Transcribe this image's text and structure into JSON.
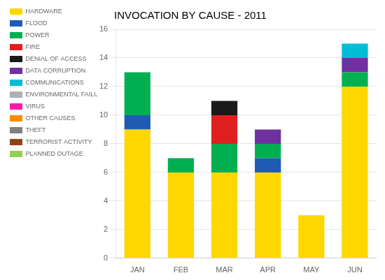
{
  "chart_data": {
    "type": "bar",
    "title": "INVOCATION BY CAUSE - 2011",
    "categories": [
      "JAN",
      "FEB",
      "MAR",
      "APR",
      "MAY",
      "JUN"
    ],
    "stacked": true,
    "series": [
      {
        "name": "HARDWARE",
        "color": "#ffd700",
        "values": [
          9,
          6,
          6,
          6,
          3,
          12
        ]
      },
      {
        "name": "FLOOD",
        "color": "#1f5bb5",
        "values": [
          1,
          0,
          0,
          1,
          0,
          0
        ]
      },
      {
        "name": "POWER",
        "color": "#00b050",
        "values": [
          3,
          1,
          2,
          1,
          0,
          1
        ]
      },
      {
        "name": "FIRE",
        "color": "#e02020",
        "values": [
          0,
          0,
          2,
          0,
          0,
          0
        ]
      },
      {
        "name": "DENIAL OF ACCESS",
        "color": "#1a1a1a",
        "values": [
          0,
          0,
          1,
          0,
          0,
          0
        ]
      },
      {
        "name": "DATA CORRUPTION",
        "color": "#7030a0",
        "values": [
          0,
          0,
          0,
          1,
          0,
          1
        ]
      },
      {
        "name": "COMMUNICATIONS",
        "color": "#00bcd4",
        "values": [
          0,
          0,
          0,
          0,
          0,
          1
        ]
      },
      {
        "name": "ENVIRONMENTAL FAILURE",
        "color": "#b0b0b0",
        "values": [
          0,
          0,
          0,
          0,
          0,
          0
        ]
      },
      {
        "name": "VIRUS",
        "color": "#ff1aaa",
        "values": [
          0,
          0,
          0,
          0,
          0,
          0
        ]
      },
      {
        "name": "OTHER CAUSES",
        "color": "#ff8c00",
        "values": [
          0,
          0,
          0,
          0,
          0,
          0
        ]
      },
      {
        "name": "THEFT",
        "color": "#808080",
        "values": [
          0,
          0,
          0,
          0,
          0,
          0
        ]
      },
      {
        "name": "TERRORIST ACTIVITY",
        "color": "#8b4513",
        "values": [
          0,
          0,
          0,
          0,
          0,
          0
        ]
      },
      {
        "name": "PLANNED OUTAGE",
        "color": "#92d050",
        "values": [
          0,
          0,
          0,
          0,
          0,
          0
        ]
      }
    ],
    "ylim": [
      0,
      16
    ],
    "yticks": [
      0,
      2,
      4,
      6,
      8,
      10,
      12,
      14,
      16
    ],
    "grid": true,
    "legend": "left"
  }
}
